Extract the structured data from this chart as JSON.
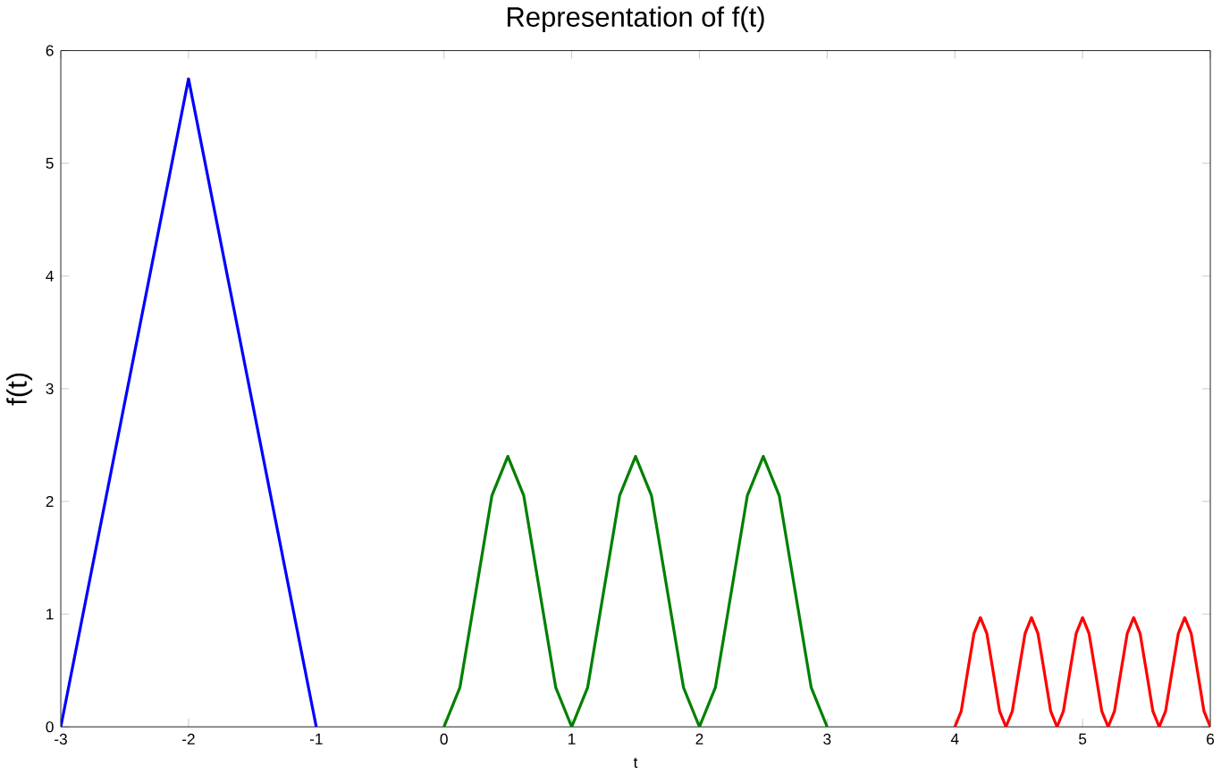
{
  "chart_data": {
    "type": "line",
    "title": "Representation of f(t)",
    "xlabel": "t",
    "ylabel": "f(t)",
    "xlim": [
      -3,
      6
    ],
    "ylim": [
      0,
      6
    ],
    "xticks": [
      -3,
      -2,
      -1,
      0,
      1,
      2,
      3,
      4,
      5,
      6
    ],
    "yticks": [
      0,
      1,
      2,
      3,
      4,
      5,
      6
    ],
    "grid": false,
    "marker": "none",
    "line_style": "solid",
    "series": [
      {
        "color": "#0000ff",
        "x": [
          -3,
          -2,
          -1
        ],
        "values": [
          0,
          5.75,
          0
        ]
      },
      {
        "color": "#008000",
        "x": [
          0,
          0.125,
          0.25,
          0.375,
          0.5,
          0.625,
          0.75,
          0.875,
          1,
          1.125,
          1.25,
          1.375,
          1.5,
          1.625,
          1.75,
          1.875,
          2,
          2.125,
          2.25,
          2.375,
          2.5,
          2.625,
          2.75,
          2.875,
          3
        ],
        "values": [
          0,
          0.35,
          1.2,
          2.05,
          2.4,
          2.05,
          1.2,
          0.35,
          0,
          0.35,
          1.2,
          2.05,
          2.4,
          2.05,
          1.2,
          0.35,
          0,
          0.35,
          1.2,
          2.05,
          2.4,
          2.05,
          1.2,
          0.35,
          0
        ]
      },
      {
        "color": "#ff0000",
        "x": [
          4,
          4.05,
          4.1,
          4.15,
          4.2,
          4.25,
          4.3,
          4.35,
          4.4,
          4.45,
          4.5,
          4.55,
          4.6,
          4.65,
          4.7,
          4.75,
          4.8,
          4.85,
          4.9,
          4.95,
          5,
          5.05,
          5.1,
          5.15,
          5.2,
          5.25,
          5.3,
          5.35,
          5.4,
          5.45,
          5.5,
          5.55,
          5.6,
          5.65,
          5.7,
          5.75,
          5.8,
          5.85,
          5.9,
          5.95,
          6
        ],
        "values": [
          0,
          0.14,
          0.49,
          0.83,
          0.97,
          0.83,
          0.49,
          0.14,
          0,
          0.14,
          0.49,
          0.83,
          0.97,
          0.83,
          0.49,
          0.14,
          0,
          0.14,
          0.49,
          0.83,
          0.97,
          0.83,
          0.49,
          0.14,
          0,
          0.14,
          0.49,
          0.83,
          0.97,
          0.83,
          0.49,
          0.14,
          0,
          0.14,
          0.49,
          0.83,
          0.97,
          0.83,
          0.49,
          0.14,
          0
        ]
      }
    ]
  }
}
